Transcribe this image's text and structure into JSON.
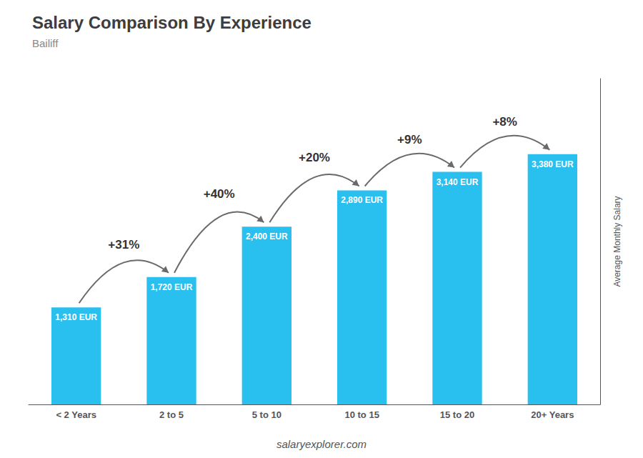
{
  "chart_data": {
    "type": "bar",
    "title": "Salary Comparison By Experience",
    "subtitle": "Bailiff",
    "categories": [
      "< 2 Years",
      "2 to 5",
      "5 to 10",
      "10 to 15",
      "15 to 20",
      "20+ Years"
    ],
    "values": [
      1310,
      1720,
      2400,
      2890,
      3140,
      3380
    ],
    "value_labels": [
      "1,310 EUR",
      "1,720 EUR",
      "2,400 EUR",
      "2,890 EUR",
      "3,140 EUR",
      "3,380 EUR"
    ],
    "data_labels": true,
    "color": "#29BFEF",
    "ylabel": "Average Monthly Salary",
    "ylim": [
      0,
      4400
    ],
    "tick_labels": "x",
    "grid": false,
    "annotations": [
      "+31%",
      "+40%",
      "+20%",
      "+9%",
      "+8%"
    ],
    "footer": "salaryexplorer.com"
  }
}
